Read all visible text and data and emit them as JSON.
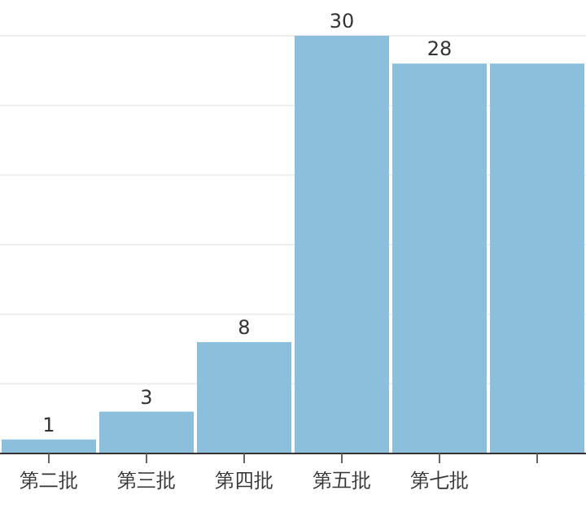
{
  "chart_data": {
    "type": "bar",
    "categories": [
      "第二批",
      "第三批",
      "第四批",
      "第五批",
      "第七批",
      null
    ],
    "values": [
      1,
      3,
      8,
      30,
      28,
      28
    ],
    "color": "#8bbfdc",
    "value_labels": [
      "1",
      "3",
      "8",
      "30",
      "28",
      null
    ],
    "ylim": [
      0,
      30
    ],
    "yticks": [
      {
        "value": 0,
        "label": null
      },
      {
        "value": 5,
        "label": null
      },
      {
        "value": 10,
        "label": null
      },
      {
        "value": 15,
        "label": null
      },
      {
        "value": 20,
        "label": null
      },
      {
        "value": 25,
        "label": null
      },
      {
        "value": 30,
        "label": null
      }
    ],
    "grid": "y",
    "tick_labels": "x"
  }
}
